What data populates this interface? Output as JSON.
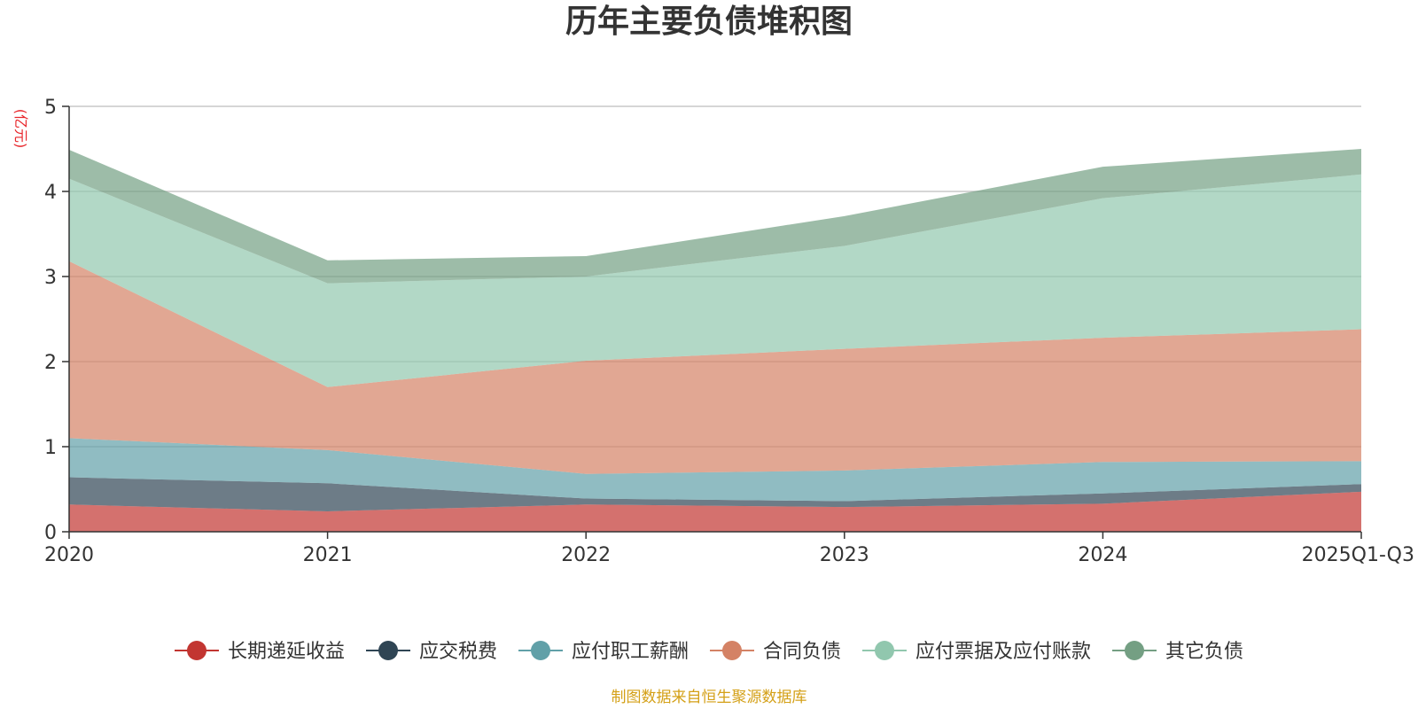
{
  "chart_data": {
    "type": "area",
    "stacked": true,
    "title": "历年主要负债堆积图",
    "unit_label": "(亿元)",
    "categories": [
      "2020",
      "2021",
      "2022",
      "2023",
      "2024",
      "2025Q1-Q3"
    ],
    "ylim": [
      0,
      5
    ],
    "yticks": [
      "0",
      "1",
      "2",
      "3",
      "4",
      "5"
    ],
    "grid": true,
    "legend_position": "bottom",
    "series": [
      {
        "name": "长期递延收益",
        "color": "#c23531",
        "values": [
          0.32,
          0.24,
          0.32,
          0.29,
          0.33,
          0.47
        ]
      },
      {
        "name": "应交税费",
        "color": "#2f4554",
        "values": [
          0.32,
          0.33,
          0.07,
          0.07,
          0.12,
          0.09
        ]
      },
      {
        "name": "应付职工薪酬",
        "color": "#61a0a8",
        "values": [
          0.46,
          0.39,
          0.29,
          0.36,
          0.37,
          0.27
        ]
      },
      {
        "name": "合同负债",
        "color": "#d48265",
        "values": [
          2.08,
          0.74,
          1.33,
          1.43,
          1.46,
          1.55
        ]
      },
      {
        "name": "应付票据及应付账款",
        "color": "#91c7ae",
        "values": [
          0.97,
          1.22,
          0.99,
          1.21,
          1.64,
          1.82
        ]
      },
      {
        "name": "其它负债",
        "color": "#749f83",
        "values": [
          0.34,
          0.27,
          0.24,
          0.35,
          0.37,
          0.3
        ]
      }
    ]
  },
  "footer": {
    "source": "制图数据来自恒生聚源数据库"
  }
}
